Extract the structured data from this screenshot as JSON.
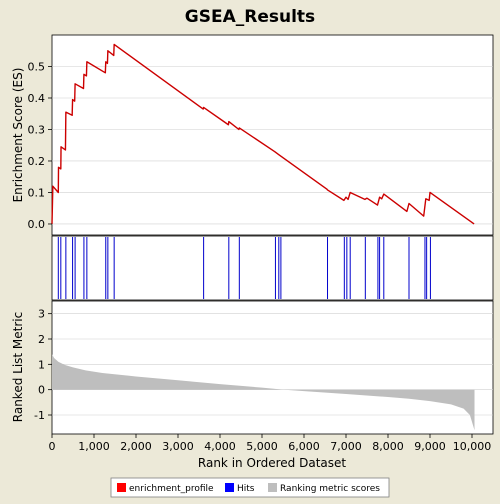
{
  "chart_data": {
    "type": "line",
    "title": "GSEA_Results",
    "xlabel": "Rank in Ordered Dataset",
    "x_ticks": [
      0,
      1000,
      2000,
      3000,
      4000,
      5000,
      6000,
      7000,
      8000,
      9000,
      10000
    ],
    "x_tick_labels": [
      "0",
      "1,000",
      "2,000",
      "3,000",
      "4,000",
      "5,000",
      "6,000",
      "7,000",
      "8,000",
      "9,000",
      "10,000"
    ],
    "xlim": [
      0,
      10500
    ],
    "es_panel": {
      "ylabel": "Enrichment Score (ES)",
      "ylim": [
        -0.035,
        0.6
      ],
      "y_ticks": [
        0.0,
        0.1,
        0.2,
        0.3,
        0.4,
        0.5
      ],
      "y_tick_labels": [
        "0.0",
        "0.1",
        "0.2",
        "0.3",
        "0.4",
        "0.5"
      ],
      "grid": true,
      "series_name": "enrichment_profile",
      "color": "#CC0000",
      "points": [
        [
          0,
          0.0
        ],
        [
          20,
          0.12
        ],
        [
          150,
          0.1
        ],
        [
          155,
          0.18
        ],
        [
          210,
          0.175
        ],
        [
          215,
          0.245
        ],
        [
          320,
          0.235
        ],
        [
          330,
          0.355
        ],
        [
          480,
          0.345
        ],
        [
          490,
          0.395
        ],
        [
          540,
          0.39
        ],
        [
          550,
          0.445
        ],
        [
          750,
          0.43
        ],
        [
          760,
          0.475
        ],
        [
          820,
          0.47
        ],
        [
          830,
          0.515
        ],
        [
          1270,
          0.48
        ],
        [
          1280,
          0.515
        ],
        [
          1320,
          0.51
        ],
        [
          1330,
          0.55
        ],
        [
          1470,
          0.535
        ],
        [
          1480,
          0.57
        ],
        [
          3600,
          0.365
        ],
        [
          3610,
          0.37
        ],
        [
          4200,
          0.315
        ],
        [
          4210,
          0.325
        ],
        [
          4450,
          0.3
        ],
        [
          4460,
          0.305
        ],
        [
          5300,
          0.23
        ],
        [
          5400,
          0.22
        ],
        [
          6550,
          0.11
        ],
        [
          6560,
          0.108
        ],
        [
          6950,
          0.075
        ],
        [
          7000,
          0.085
        ],
        [
          7050,
          0.078
        ],
        [
          7100,
          0.1
        ],
        [
          7450,
          0.078
        ],
        [
          7500,
          0.082
        ],
        [
          7750,
          0.06
        ],
        [
          7800,
          0.085
        ],
        [
          7850,
          0.08
        ],
        [
          7900,
          0.095
        ],
        [
          8450,
          0.04
        ],
        [
          8500,
          0.065
        ],
        [
          8850,
          0.025
        ],
        [
          8900,
          0.08
        ],
        [
          8980,
          0.075
        ],
        [
          9000,
          0.1
        ],
        [
          10050,
          0.0
        ]
      ]
    },
    "hits_panel": {
      "series_name": "Hits",
      "color": "#0000CC",
      "positions": [
        150,
        210,
        330,
        490,
        550,
        760,
        830,
        1280,
        1330,
        1480,
        3610,
        4210,
        4460,
        5320,
        5400,
        5450,
        6560,
        6960,
        7020,
        7100,
        7460,
        7760,
        7800,
        7900,
        8500,
        8880,
        8920,
        9010
      ]
    },
    "metric_panel": {
      "ylabel": "Ranked List Metric",
      "ylim": [
        -1.75,
        3.5
      ],
      "y_ticks": [
        -1,
        0,
        1,
        2,
        3
      ],
      "y_tick_labels": [
        "-1",
        "0",
        "1",
        "2",
        "3"
      ],
      "grid": true,
      "series_name": "Ranking metric scores",
      "color": "#BEBEBE",
      "n_ranks": 10060,
      "curve": [
        [
          0,
          1.4
        ],
        [
          50,
          1.25
        ],
        [
          150,
          1.1
        ],
        [
          300,
          0.98
        ],
        [
          500,
          0.88
        ],
        [
          800,
          0.76
        ],
        [
          1200,
          0.66
        ],
        [
          2000,
          0.52
        ],
        [
          3000,
          0.37
        ],
        [
          4000,
          0.22
        ],
        [
          5000,
          0.08
        ],
        [
          5500,
          0.0
        ],
        [
          6000,
          -0.06
        ],
        [
          7000,
          -0.17
        ],
        [
          8000,
          -0.29
        ],
        [
          8500,
          -0.36
        ],
        [
          9000,
          -0.45
        ],
        [
          9500,
          -0.58
        ],
        [
          9800,
          -0.75
        ],
        [
          9950,
          -1.0
        ],
        [
          10060,
          -1.6
        ]
      ]
    },
    "legend": {
      "placement": "bottom",
      "entries": [
        {
          "label": "enrichment_profile",
          "color": "#FF0000"
        },
        {
          "label": "Hits",
          "color": "#0000FF"
        },
        {
          "label": "Ranking metric scores",
          "color": "#BEBEBE"
        }
      ]
    }
  }
}
